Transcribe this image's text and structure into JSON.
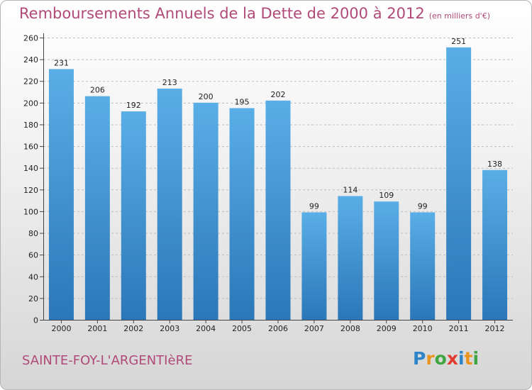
{
  "chart_data": {
    "type": "bar",
    "title": "Remboursements Annuels de la Dette de 2000 à 2012",
    "subtitle": "(en milliers d'€)",
    "categories": [
      "2000",
      "2001",
      "2002",
      "2003",
      "2004",
      "2005",
      "2006",
      "2007",
      "2008",
      "2009",
      "2010",
      "2011",
      "2012"
    ],
    "values": [
      231,
      206,
      192,
      213,
      200,
      195,
      202,
      99,
      114,
      109,
      99,
      251,
      138
    ],
    "yticks": [
      0,
      20,
      40,
      60,
      80,
      100,
      120,
      140,
      160,
      180,
      200,
      220,
      240,
      260
    ],
    "ylim": [
      0,
      260
    ],
    "xlabel": "",
    "ylabel": "",
    "grid": "horizontal dashed"
  },
  "footer": {
    "commune": "SAINTE-FOY-L'ARGENTIèRE",
    "logo_letters": [
      "P",
      "r",
      "o",
      "x",
      "i",
      "t",
      "i"
    ]
  },
  "colors": {
    "title": "#b04a78",
    "bar_top": "#5aaee6",
    "bar_bottom": "#2b77b8",
    "logo": [
      "#2f84c9",
      "#e8941f",
      "#3fa540",
      "#e23c31",
      "#2f84c9",
      "#e8941f",
      "#3fa540"
    ]
  }
}
